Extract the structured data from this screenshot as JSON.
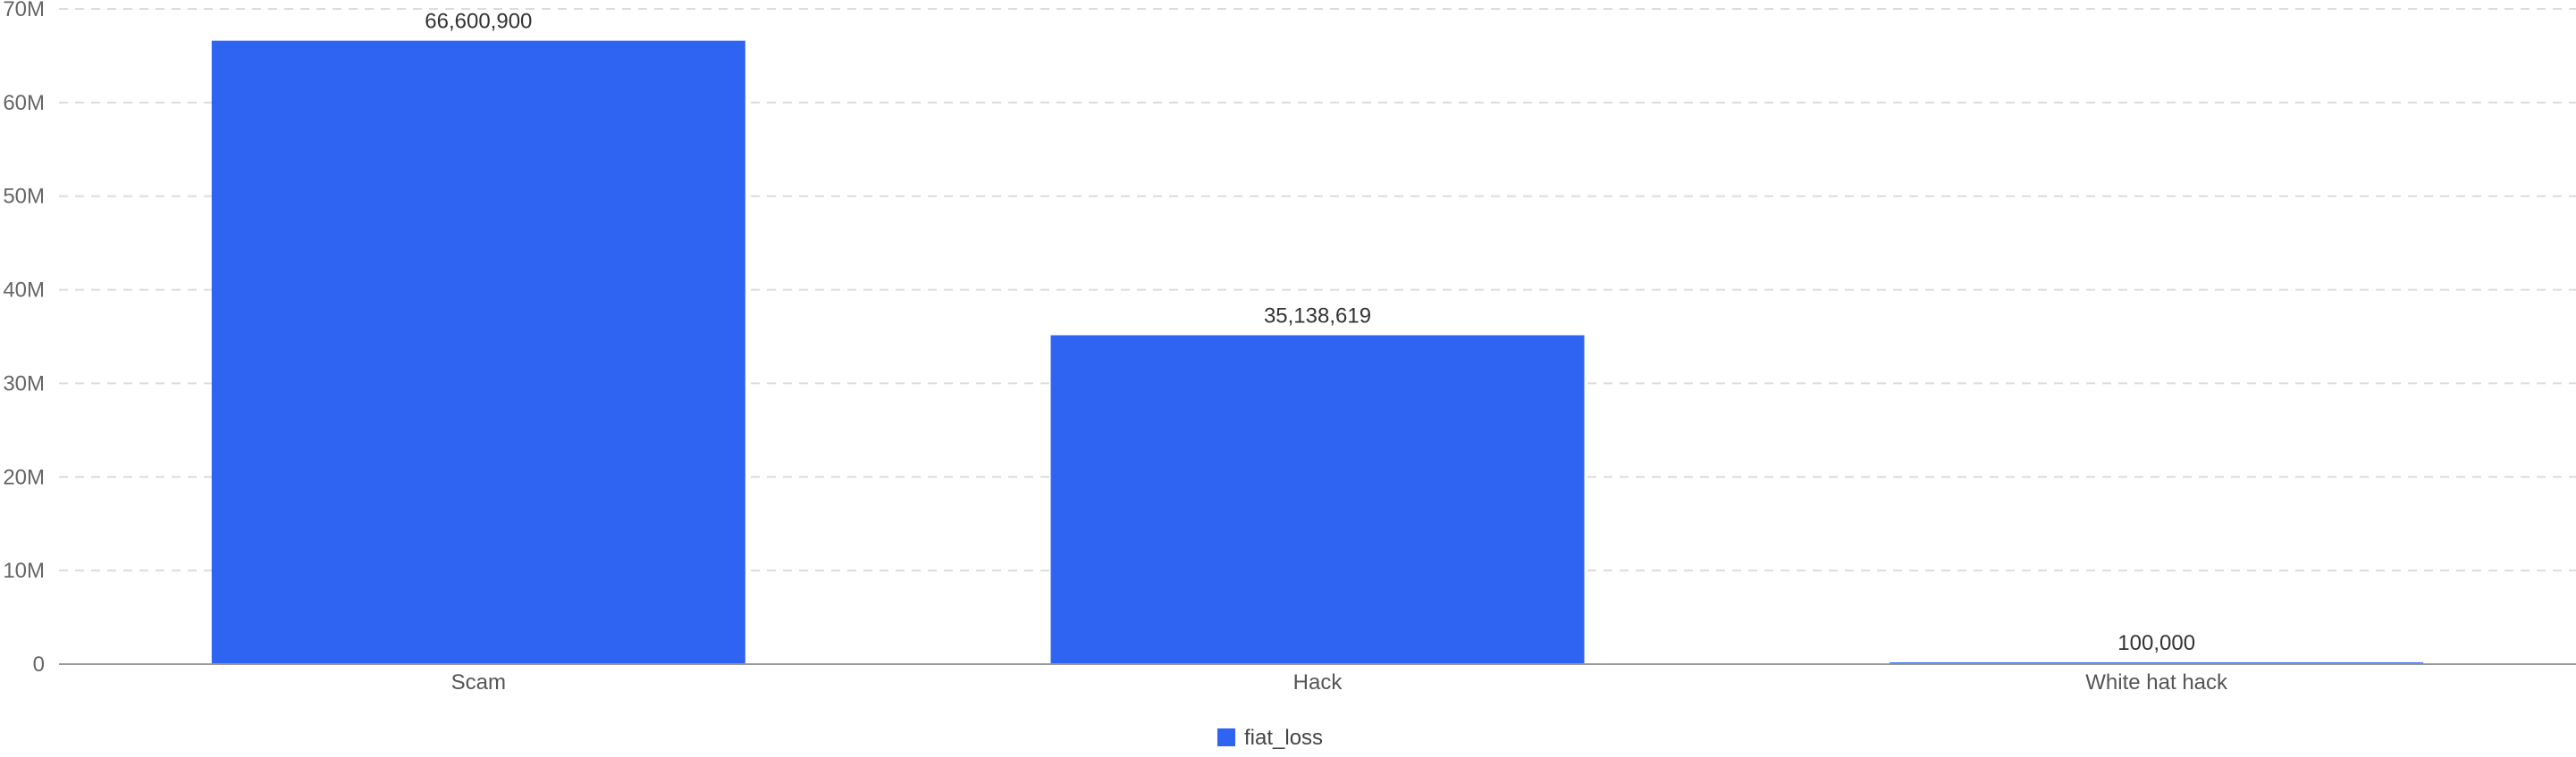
{
  "chart_data": {
    "type": "bar",
    "categories": [
      "Scam",
      "Hack",
      "White hat hack"
    ],
    "series": [
      {
        "name": "fiat_loss",
        "values": [
          66600900,
          35138619,
          100000
        ],
        "color": "#2f64f2"
      }
    ],
    "data_labels": [
      "66,600,900",
      "35,138,619",
      "100,000"
    ],
    "y_ticks": [
      0,
      10000000,
      20000000,
      30000000,
      40000000,
      50000000,
      60000000,
      70000000
    ],
    "y_tick_labels": [
      "0",
      "10M",
      "20M",
      "30M",
      "40M",
      "50M",
      "60M",
      "70M"
    ],
    "ylim": [
      0,
      70000000
    ],
    "grid": true,
    "legend_position": "bottom-center",
    "title": "",
    "xlabel": "",
    "ylabel": ""
  }
}
